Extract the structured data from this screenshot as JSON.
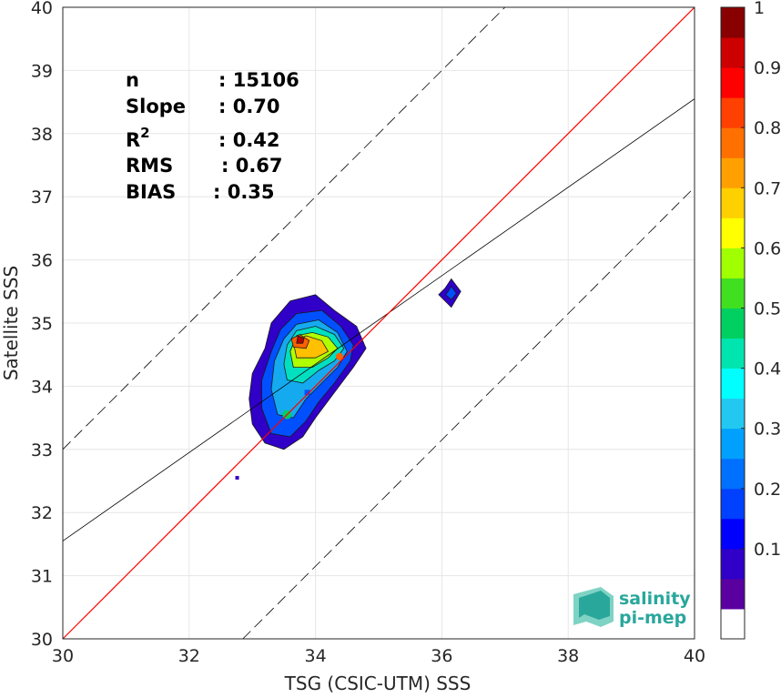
{
  "chart_data": {
    "type": "scatter",
    "subtype": "density-contour",
    "xlabel": "TSG (CSIC-UTM) SSS",
    "ylabel": "Satellite SSS",
    "xlim": [
      30,
      40
    ],
    "ylim": [
      30,
      40
    ],
    "xticks": [
      "30",
      "32",
      "34",
      "36",
      "38",
      "40"
    ],
    "yticks": [
      "30",
      "31",
      "32",
      "33",
      "34",
      "35",
      "36",
      "37",
      "38",
      "39",
      "40"
    ],
    "grid": true,
    "stats": [
      {
        "label": "n",
        "value": ": 15106"
      },
      {
        "label": "Slope",
        "value": ": 0.70"
      },
      {
        "label": "R",
        "sup": "2",
        "value": ": 0.42"
      },
      {
        "label": "RMS",
        "value": ": 0.67"
      },
      {
        "label": "BIAS",
        "value": ": 0.35"
      }
    ],
    "lines": {
      "identity": {
        "slope": 1.0,
        "intercept": 0,
        "color": "#ff0000"
      },
      "fit": {
        "slope": 0.7,
        "intercept": 10.55,
        "color": "#000000"
      },
      "upper_dashed": {
        "slope": 1.0,
        "intercept": 3.0
      },
      "lower_dashed": {
        "slope": 1.0,
        "intercept": -2.85
      }
    },
    "colorbar": {
      "ticks": [
        "0.1",
        "0.2",
        "0.3",
        "0.4",
        "0.5",
        "0.6",
        "0.7",
        "0.8",
        "0.9",
        "1"
      ],
      "colors": [
        "#ffffff",
        "#5a00a0",
        "#3000c8",
        "#0000ff",
        "#0040ff",
        "#0070ff",
        "#00a0ff",
        "#22c8f0",
        "#00ffff",
        "#00e5b0",
        "#00d060",
        "#40e020",
        "#a0ff00",
        "#ffff00",
        "#ffd000",
        "#ffa000",
        "#ff7000",
        "#ff4000",
        "#ff0000",
        "#cc0000",
        "#880000"
      ]
    },
    "contours": [
      {
        "level": 0.05,
        "color": "#3000c8",
        "points": [
          [
            33.2,
            33.1
          ],
          [
            33.5,
            33.0
          ],
          [
            33.8,
            33.2
          ],
          [
            34.0,
            33.5
          ],
          [
            34.3,
            33.9
          ],
          [
            34.6,
            34.3
          ],
          [
            34.8,
            34.6
          ],
          [
            34.65,
            34.95
          ],
          [
            34.3,
            35.2
          ],
          [
            34.0,
            35.45
          ],
          [
            33.6,
            35.35
          ],
          [
            33.3,
            35.0
          ],
          [
            33.2,
            34.6
          ],
          [
            33.0,
            34.2
          ],
          [
            32.95,
            33.8
          ],
          [
            33.0,
            33.4
          ]
        ]
      },
      {
        "level": 0.2,
        "color": "#0050ff",
        "points": [
          [
            33.3,
            33.25
          ],
          [
            33.6,
            33.2
          ],
          [
            33.85,
            33.45
          ],
          [
            34.05,
            33.75
          ],
          [
            34.3,
            34.05
          ],
          [
            34.55,
            34.4
          ],
          [
            34.6,
            34.65
          ],
          [
            34.4,
            34.95
          ],
          [
            34.1,
            35.2
          ],
          [
            33.7,
            35.15
          ],
          [
            33.45,
            34.9
          ],
          [
            33.3,
            34.55
          ],
          [
            33.15,
            34.1
          ],
          [
            33.15,
            33.65
          ]
        ]
      },
      {
        "level": 0.3,
        "color": "#15aaf0",
        "points": [
          [
            33.4,
            33.55
          ],
          [
            33.65,
            33.5
          ],
          [
            33.85,
            33.8
          ],
          [
            34.1,
            34.05
          ],
          [
            34.35,
            34.3
          ],
          [
            34.5,
            34.55
          ],
          [
            34.35,
            34.85
          ],
          [
            34.05,
            35.05
          ],
          [
            33.7,
            34.98
          ],
          [
            33.5,
            34.75
          ],
          [
            33.35,
            34.4
          ],
          [
            33.3,
            33.95
          ]
        ]
      },
      {
        "level": 0.45,
        "color": "#00e0c0",
        "points": [
          [
            33.55,
            34.1
          ],
          [
            33.8,
            34.05
          ],
          [
            34.05,
            34.25
          ],
          [
            34.3,
            34.4
          ],
          [
            34.45,
            34.6
          ],
          [
            34.3,
            34.82
          ],
          [
            34.0,
            34.95
          ],
          [
            33.7,
            34.88
          ],
          [
            33.55,
            34.65
          ],
          [
            33.5,
            34.35
          ]
        ]
      },
      {
        "level": 0.6,
        "color": "#b0ff00",
        "points": [
          [
            33.65,
            34.3
          ],
          [
            33.95,
            34.3
          ],
          [
            34.2,
            34.45
          ],
          [
            34.35,
            34.6
          ],
          [
            34.2,
            34.78
          ],
          [
            33.95,
            34.85
          ],
          [
            33.7,
            34.8
          ],
          [
            33.6,
            34.55
          ]
        ]
      },
      {
        "level": 0.7,
        "color": "#ffc000",
        "points": [
          [
            33.7,
            34.45
          ],
          [
            34.0,
            34.45
          ],
          [
            34.2,
            34.55
          ],
          [
            34.1,
            34.72
          ],
          [
            33.85,
            34.8
          ],
          [
            33.65,
            34.7
          ]
        ]
      },
      {
        "level": 0.85,
        "color": "#ff6000",
        "points": [
          [
            33.65,
            34.62
          ],
          [
            33.85,
            34.6
          ],
          [
            33.9,
            34.72
          ],
          [
            33.75,
            34.82
          ],
          [
            33.62,
            34.75
          ]
        ]
      },
      {
        "level": 1.0,
        "color": "#b00000",
        "points": [
          [
            33.7,
            34.68
          ],
          [
            33.8,
            34.68
          ],
          [
            33.82,
            34.76
          ],
          [
            33.72,
            34.8
          ]
        ]
      },
      {
        "level": 0.05,
        "color": "#3000c8",
        "points": [
          [
            36.05,
            35.55
          ],
          [
            36.15,
            35.7
          ],
          [
            36.3,
            35.5
          ],
          [
            36.15,
            35.25
          ],
          [
            35.95,
            35.45
          ]
        ]
      },
      {
        "level": 0.2,
        "color": "#0050ff",
        "points": [
          [
            36.1,
            35.5
          ],
          [
            36.15,
            35.58
          ],
          [
            36.23,
            35.47
          ],
          [
            36.15,
            35.37
          ],
          [
            36.06,
            35.45
          ]
        ]
      }
    ]
  },
  "logo": {
    "line1": "salinity",
    "line2": "pi-mep"
  }
}
